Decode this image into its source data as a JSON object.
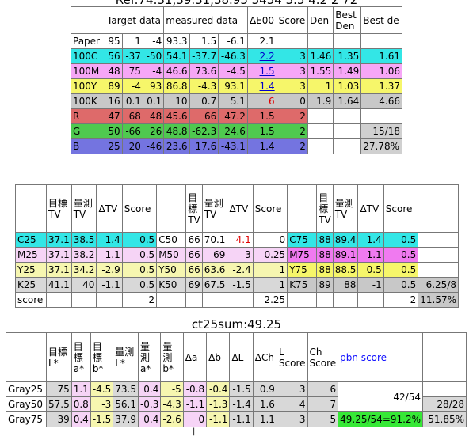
{
  "top_title": "Ref:74.31,39.31,38.95  3454  3.5  4.2  2 72",
  "t1": {
    "headers": [
      "",
      "Target data",
      "",
      "",
      "measured data",
      "",
      "",
      "ΔE00",
      "Score",
      "Den",
      "Best Den",
      "Best de"
    ],
    "rows": [
      [
        "Paper",
        "95",
        "1",
        "-4",
        "93.3",
        "1.5",
        "-6.1",
        "2.1",
        "",
        "",
        "",
        ""
      ],
      [
        "100C",
        "56",
        "-37",
        "-50",
        "54.1",
        "-37.7",
        "-46.3",
        "2.2",
        "3",
        "1.46",
        "1.35",
        "1.61"
      ],
      [
        "100M",
        "48",
        "75",
        "-4",
        "46.6",
        "73.6",
        "-4.5",
        "1.5",
        "3",
        "1.55",
        "1.49",
        "1.06"
      ],
      [
        "100Y",
        "89",
        "-4",
        "93",
        "86.8",
        "-4.3",
        "93.1",
        "1.4",
        "3",
        "1",
        "1.03",
        "1.37"
      ],
      [
        "100K",
        "16",
        "0.1",
        "0.1",
        "10",
        "0.7",
        "5.1",
        "6",
        "0",
        "1.9",
        "1.64",
        "4.66"
      ],
      [
        "R",
        "47",
        "68",
        "48",
        "45.6",
        "66",
        "47.2",
        "1.5",
        "2",
        "",
        "",
        ""
      ],
      [
        "G",
        "50",
        "-66",
        "26",
        "48.8",
        "-62.3",
        "24.6",
        "1.5",
        "2",
        "",
        "",
        "15/18"
      ],
      [
        "B",
        "25",
        "20",
        "-46",
        "23.6",
        "17.6",
        "-43.1",
        "1.4",
        "2",
        "",
        "",
        "27.78%"
      ]
    ]
  },
  "t2": {
    "headers": [
      "",
      "目標TV",
      "量測TV",
      "ΔTV",
      "Score",
      "",
      "目標TV",
      "量測TV",
      "ΔTV",
      "Score",
      "",
      "目標TV",
      "量測TV",
      "ΔTV",
      "Score",
      ""
    ],
    "rows": [
      [
        "C25",
        "37.1",
        "38.5",
        "1.4",
        "0.5",
        "C50",
        "66",
        "70.1",
        "4.1",
        "0",
        "C75",
        "88",
        "89.4",
        "1.4",
        "0.5",
        ""
      ],
      [
        "M25",
        "37.1",
        "38.2",
        "1.1",
        "0.5",
        "M50",
        "66",
        "69",
        "3",
        "0.25",
        "M75",
        "88",
        "89.1",
        "1.1",
        "0.5",
        ""
      ],
      [
        "Y25",
        "37.1",
        "34.2",
        "-2.9",
        "0.5",
        "Y50",
        "66",
        "63.6",
        "-2.4",
        "1",
        "Y75",
        "88",
        "88.5",
        "0.5",
        "0.5",
        ""
      ],
      [
        "K25",
        "41.1",
        "40",
        "-1.1",
        "0.5",
        "K50",
        "69",
        "67.5",
        "-1.5",
        "1",
        "K75",
        "89",
        "88",
        "-1",
        "0.5",
        "6.25/8"
      ],
      [
        "score",
        "",
        "",
        "",
        "2",
        "",
        "",
        "",
        "",
        "2.25",
        "",
        "",
        "",
        "",
        "2",
        "11.57%"
      ]
    ]
  },
  "ct_sum": "ct25sum:49.25",
  "t3": {
    "headers": [
      "",
      "目標L*",
      "目標a*",
      "目標b*",
      "量測L*",
      "量測a*",
      "量測b*",
      "Δa",
      "Δb",
      "ΔL",
      "ΔCh",
      "L Score",
      "Ch Score",
      "pbn score",
      ""
    ],
    "rows": [
      [
        "Gray25",
        "75",
        "1.1",
        "-4.5",
        "73.5",
        "0.4",
        "-5",
        "-0.8",
        "-0.4",
        "-1.5",
        "0.9",
        "3",
        "6"
      ],
      [
        "Gray50",
        "57.5",
        "0.8",
        "-3",
        "56.1",
        "-0.3",
        "-4.3",
        "-1.1",
        "-1.3",
        "-1.4",
        "1.6",
        "4",
        "7"
      ],
      [
        "Gray75",
        "39",
        "0.4",
        "-1.5",
        "37.9",
        "0.4",
        "-2.6",
        "0",
        "-1.1",
        "-1.1",
        "1.1",
        "3",
        "5"
      ]
    ],
    "pbn_frac": "42/54",
    "gray_frac": "28/28",
    "pbn_pct": "49.25/54=91.2%",
    "gray_pct": "51.85%"
  },
  "bottom_fragment": "|"
}
